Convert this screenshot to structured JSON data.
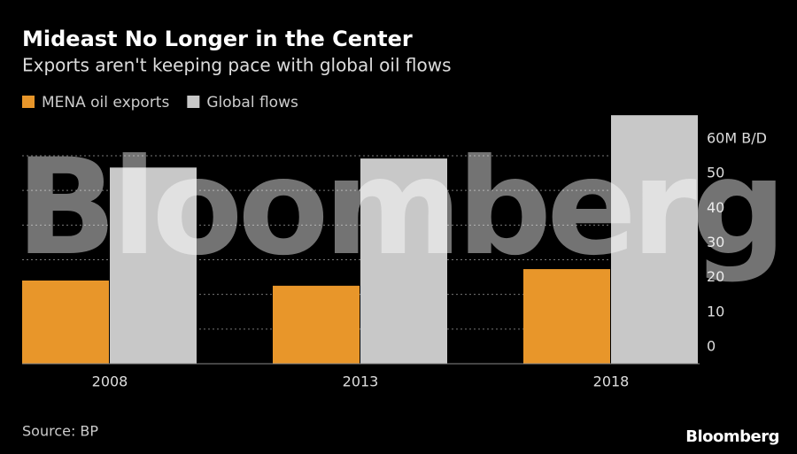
{
  "chart_data": {
    "type": "bar",
    "title": "Mideast No Longer in the Center",
    "subtitle": "Exports aren't keeping pace with global oil flows",
    "categories": [
      "2008",
      "2013",
      "2018"
    ],
    "series": [
      {
        "name": "MENA oil exports",
        "color": "#e8962a",
        "values": [
          24,
          22.5,
          27.3
        ]
      },
      {
        "name": "Global flows",
        "color": "#c8c8c8",
        "values": [
          56.6,
          59.2,
          71.7
        ]
      }
    ],
    "ylim": [
      0,
      72
    ],
    "yticks": [
      0,
      10,
      20,
      30,
      40,
      50,
      {
        "value": 60,
        "label": "60M B/D"
      }
    ],
    "grid": true,
    "watermark": "Bloomberg",
    "source": "Source: BP",
    "logo": "Bloomberg"
  }
}
